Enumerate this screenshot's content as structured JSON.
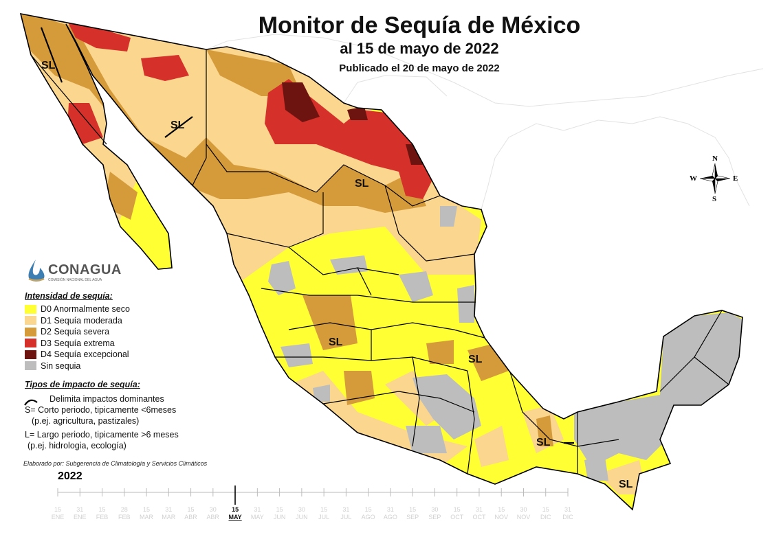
{
  "title": "Monitor de Sequía de México",
  "subtitle": "al 15 de mayo de 2022",
  "published": "Publicado el 20 de mayo de 2022",
  "logo": {
    "name": "CONAGUA",
    "sub": "COMISIÓN NACIONAL DEL AGUA"
  },
  "legend": {
    "heading": "Intensidad de sequía:",
    "items": [
      {
        "label": "D0 Anormalmente seco",
        "color": "#ffff33"
      },
      {
        "label": "D1 Sequía moderada",
        "color": "#fad68f"
      },
      {
        "label": "D2 Sequía severa",
        "color": "#d59b3b"
      },
      {
        "label": "D3 Sequía extrema",
        "color": "#d6302a"
      },
      {
        "label": "D4 Sequía excepcional",
        "color": "#6e1410"
      },
      {
        "label": "Sin sequia",
        "color": "#bdbdbd"
      }
    ]
  },
  "impact": {
    "heading": "Tipos de impacto de sequía:",
    "delimita": "Delimita impactos dominantes",
    "s1": "S= Corto periodo, tipicamente <6meses",
    "s2": "(p.ej. agricultura, pastizales)",
    "l1": "L= Largo periodo, tipicamente >6 meses",
    "l2": "(p.ej. hidrologia, ecología)"
  },
  "credit": "Elaborado por: Subgerencia de Climatología y Servicios Climáticos",
  "year": "2022",
  "timeline": [
    {
      "d": "15",
      "m": "ENE"
    },
    {
      "d": "31",
      "m": "ENE"
    },
    {
      "d": "15",
      "m": "FEB"
    },
    {
      "d": "28",
      "m": "FEB"
    },
    {
      "d": "15",
      "m": "MAR"
    },
    {
      "d": "31",
      "m": "MAR"
    },
    {
      "d": "15",
      "m": "ABR"
    },
    {
      "d": "30",
      "m": "ABR"
    },
    {
      "d": "15",
      "m": "MAY",
      "active": true
    },
    {
      "d": "31",
      "m": "MAY"
    },
    {
      "d": "15",
      "m": "JUN"
    },
    {
      "d": "30",
      "m": "JUN"
    },
    {
      "d": "15",
      "m": "JUL"
    },
    {
      "d": "31",
      "m": "JUL"
    },
    {
      "d": "15",
      "m": "AGO"
    },
    {
      "d": "31",
      "m": "AGO"
    },
    {
      "d": "15",
      "m": "SEP"
    },
    {
      "d": "30",
      "m": "SEP"
    },
    {
      "d": "15",
      "m": "OCT"
    },
    {
      "d": "31",
      "m": "OCT"
    },
    {
      "d": "15",
      "m": "NOV"
    },
    {
      "d": "30",
      "m": "NOV"
    },
    {
      "d": "15",
      "m": "DIC"
    },
    {
      "d": "31",
      "m": "DIC"
    }
  ],
  "sl_label": "SL",
  "compass": {
    "n": "N",
    "s": "S",
    "e": "E",
    "w": "W"
  }
}
